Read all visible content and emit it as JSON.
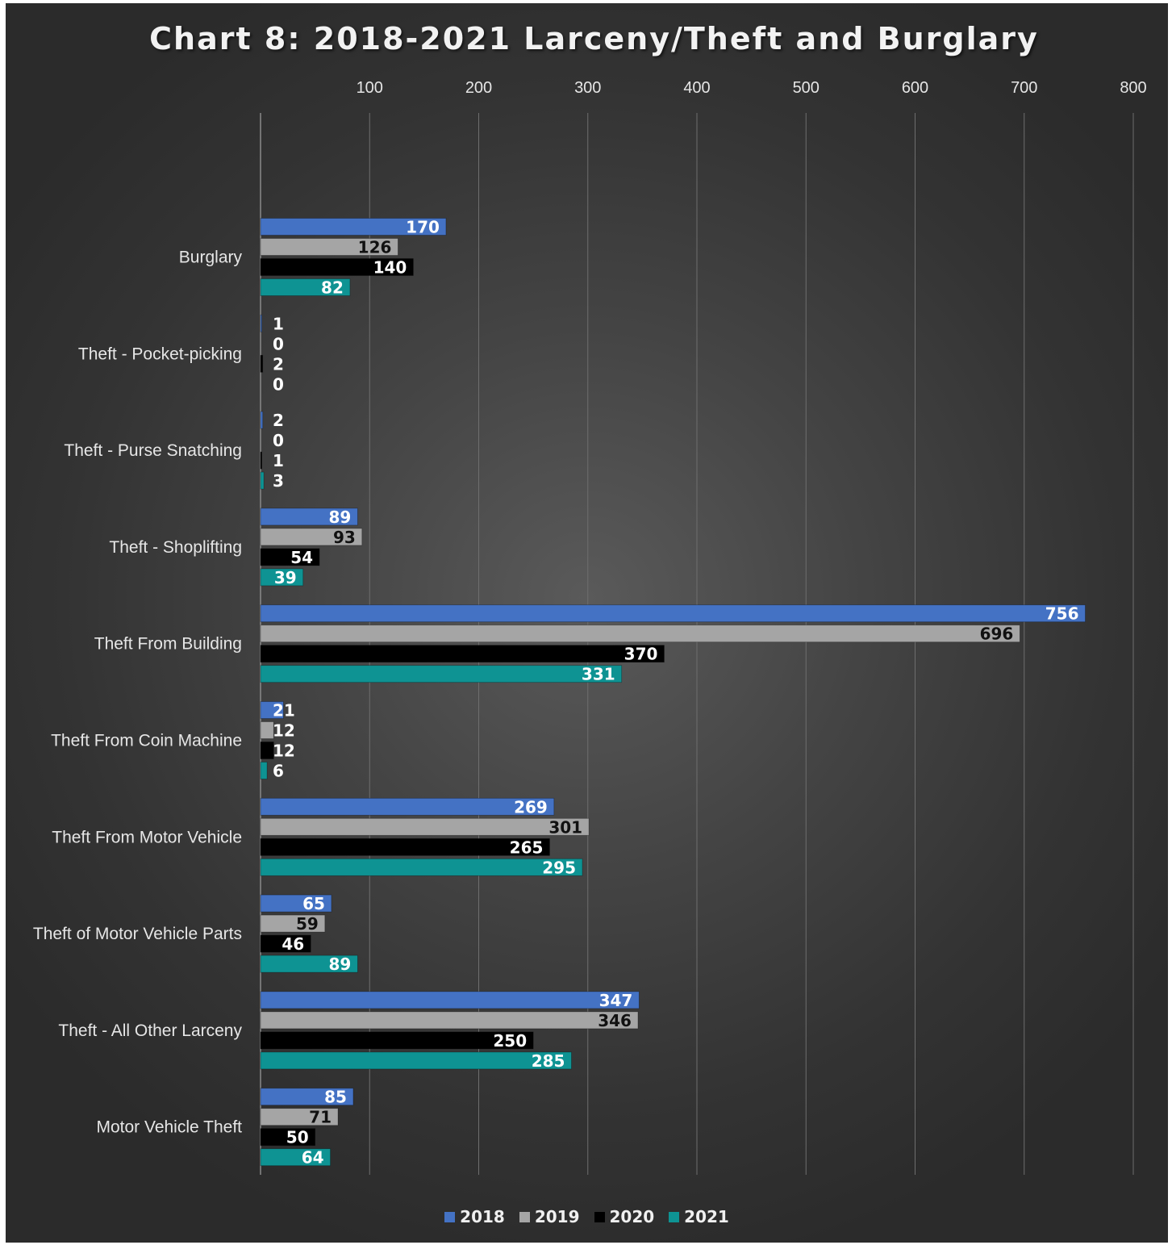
{
  "chart_data": {
    "type": "bar",
    "orientation": "horizontal",
    "title": "Chart 8: 2018-2021 Larceny/Theft and Burglary",
    "xlim": [
      0,
      800
    ],
    "xticks": [
      100,
      200,
      300,
      400,
      500,
      600,
      700,
      800
    ],
    "grid": true,
    "legend_position": "bottom",
    "categories": [
      "Burglary",
      "Theft - Pocket-picking",
      "Theft - Purse Snatching",
      "Theft - Shoplifting",
      "Theft From Building",
      "Theft From Coin Machine",
      "Theft From Motor Vehicle",
      "Theft of Motor Vehicle Parts",
      "Theft - All Other Larceny",
      "Motor Vehicle Theft"
    ],
    "series": [
      {
        "name": "2018",
        "color": "#4472c4",
        "label_color": "#ffffff",
        "values": [
          170,
          1,
          2,
          89,
          756,
          21,
          269,
          65,
          347,
          85
        ]
      },
      {
        "name": "2019",
        "color": "#a5a5a5",
        "label_color": "#111111",
        "values": [
          126,
          0,
          0,
          93,
          696,
          12,
          301,
          59,
          346,
          71
        ]
      },
      {
        "name": "2020",
        "color": "#000000",
        "label_color": "#ffffff",
        "values": [
          140,
          2,
          1,
          54,
          370,
          12,
          265,
          46,
          250,
          50
        ]
      },
      {
        "name": "2021",
        "color": "#0e9393",
        "label_color": "#ffffff",
        "values": [
          82,
          0,
          3,
          39,
          331,
          6,
          295,
          89,
          285,
          64
        ]
      }
    ]
  }
}
